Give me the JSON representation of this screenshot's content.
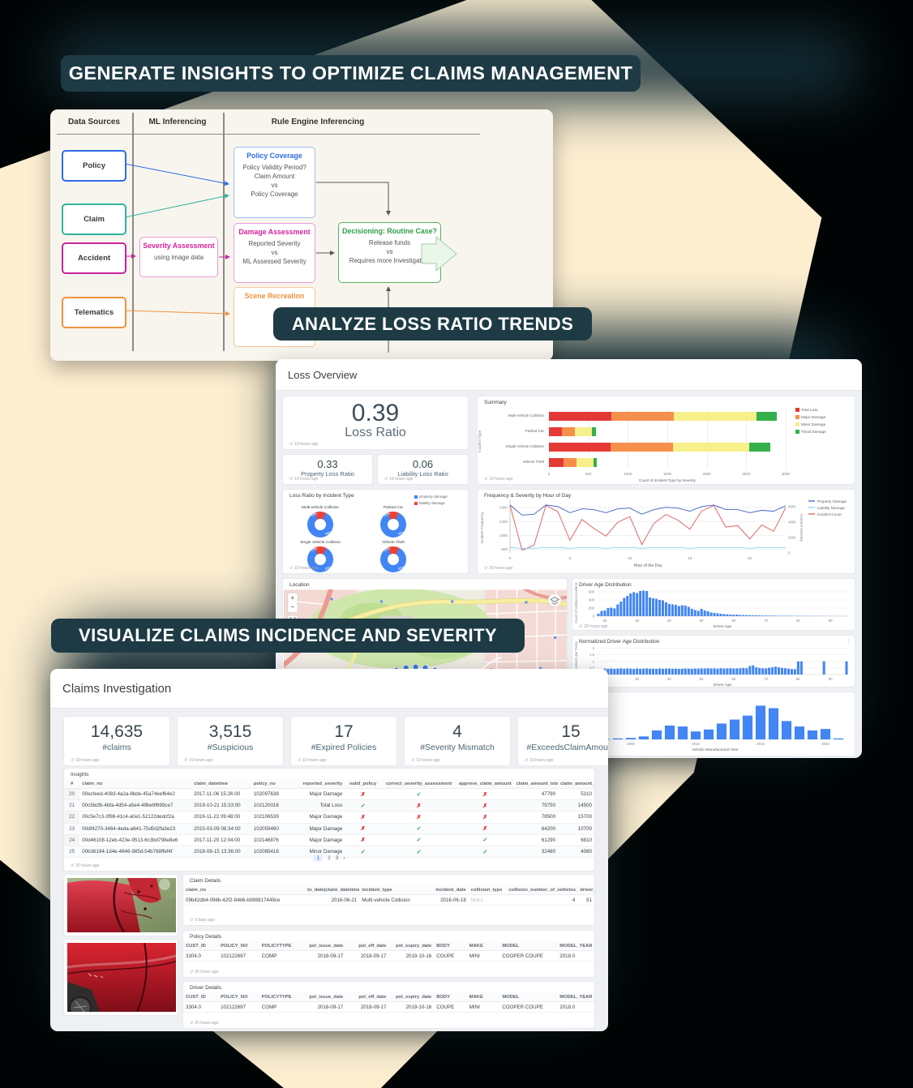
{
  "banners": {
    "b1": "GENERATE INSIGHTS TO OPTIMIZE CLAIMS MANAGEMENT",
    "b2": "ANALYZE LOSS RATIO TRENDS",
    "b3": "VISUALIZE CLAIMS INCIDENCE AND SEVERITY"
  },
  "colors": {
    "accent_cream": "#fdeed0",
    "banner_bg": "#1e3b45",
    "blue": "#2e6be6",
    "teal": "#2fb5a0",
    "magenta": "#d6219c",
    "orange": "#f0923e",
    "green": "#2f9e44",
    "chart_blue": "#4285f4",
    "chart_red": "#ea4335",
    "check_green": "#1e9e44",
    "cross_red": "#dd1c1c"
  },
  "flowchart": {
    "headers": [
      "Data Sources",
      "ML Inferencing",
      "Rule Engine Inferencing"
    ],
    "sources": [
      {
        "label": "Policy",
        "color": "#2e6be6"
      },
      {
        "label": "Claim",
        "color": "#2fb5a0"
      },
      {
        "label": "Accident",
        "color": "#c9259c"
      },
      {
        "label": "Telematics",
        "color": "#f0923e"
      }
    ],
    "ml_box": {
      "title": "Severity Assessment",
      "subtitle": "using image data",
      "color": "#d6219c",
      "border": "#eb9ad6"
    },
    "policy_box": {
      "title": "Policy Coverage",
      "lines": [
        "Policy Validity Period?",
        "Claim Amount",
        "vs",
        "Policy Coverage"
      ],
      "color": "#2e6be6",
      "border": "#9dbef2"
    },
    "damage_box": {
      "title": "Damage Assessment",
      "lines": [
        "Reported Severity",
        "vs",
        "ML Assessed Severity"
      ],
      "color": "#d6219c",
      "border": "#eb9ad6"
    },
    "scene_box": {
      "title": "Scene Recreation",
      "lines": [],
      "color": "#f0923e",
      "border": "#f6c795"
    },
    "decision_box": {
      "title": "Decisioning: Routine Case?",
      "lines": [
        "Release funds",
        "vs",
        "Requires more Investigation"
      ],
      "color": "#2f9e44",
      "border": "#57b35f"
    }
  },
  "loss": {
    "title": "Loss Overview",
    "kpi_main": {
      "value": "0.39",
      "label": "Loss Ratio",
      "ago": "19 hours ago"
    },
    "kpi_sub": [
      {
        "value": "0.33",
        "label": "Property Loss Ratio",
        "ago": "19 hours ago"
      },
      {
        "value": "0.06",
        "label": "Liability Loss Ratio",
        "ago": "19 hours ago"
      }
    ],
    "summary": {
      "title": "Summary",
      "ago": "19 hours ago"
    },
    "donuts": {
      "title": "Loss Ratio by Incident Type",
      "ago": "19 hours ago"
    },
    "freq": {
      "title": "Frequency & Severity by Hour of Day",
      "ago": "20 hours ago"
    },
    "map": {
      "title": "Location"
    },
    "age1": {
      "title": "Driver Age Distribution",
      "ago": "20 hours ago"
    },
    "age2": {
      "title": "Normalized Driver Age Distribution"
    },
    "age3": {
      "title": "Age"
    }
  },
  "claims": {
    "title": "Claims Investigation",
    "kpis": [
      {
        "value": "14,635",
        "label": "#claims",
        "ago": "19 hours ago"
      },
      {
        "value": "3,515",
        "label": "#Suspicious",
        "ago": "19 hours ago"
      },
      {
        "value": "17",
        "label": "#Expired Policies",
        "ago": "19 hours ago"
      },
      {
        "value": "4",
        "label": "#Severity Mismatch",
        "ago": "19 hours ago"
      },
      {
        "value": "15",
        "label": "#ExceedsClaimAmount",
        "ago": "19 hours ago"
      }
    ],
    "insights": {
      "title": "Insights",
      "ago": "20 hours ago",
      "columns": [
        "#",
        "claim_no",
        "claim_datetime",
        "policy_no",
        "reported_severity",
        "valid_policy",
        "correct_severity_assessment",
        "approve_claim_amount",
        "claim_amount_total",
        "claim_amount_injury"
      ],
      "rows": [
        [
          "20",
          "00ecfeed-4083-4a2a-8bde-45a74eef64e2",
          "2017-11-06 15:26:00",
          "102097638",
          "Major Damage",
          "x",
          "v",
          "x",
          "47790",
          "5310"
        ],
        [
          "21",
          "00c5bcfb-4bfa-4d54-a5e4-49be9f699ce7",
          "2019-10-21 15:33:00",
          "102120018",
          "Total Loss",
          "v",
          "x",
          "x",
          "79750",
          "14500"
        ],
        [
          "22",
          "00c5e7c3-3f98-41c4-a0e1-52122dedcf2a",
          "2016-11-22 09:48:00",
          "102106539",
          "Major Damage",
          "x",
          "x",
          "x",
          "78500",
          "15700"
        ],
        [
          "23",
          "00df4270-3464-4eda-a641-75d5d2fa3e23",
          "2015-03-09 08:34:00",
          "102059460",
          "Major Damage",
          "x",
          "v",
          "x",
          "64200",
          "10700"
        ],
        [
          "24",
          "00d46108-12eb-423e-9513-6c3bd798e8e6",
          "2017-11-20 12:04:00",
          "102146876",
          "Major Damage",
          "x",
          "v",
          "v",
          "61290",
          "6810"
        ],
        [
          "25",
          "00b36194-1d4e-4646-985d-54b768ffef4f",
          "2018-08-15 13:36:00",
          "102085418",
          "Minor Damage",
          "v",
          "v",
          "v",
          "32480",
          "4060"
        ]
      ],
      "pagination": [
        "1",
        "2",
        "3",
        "›"
      ],
      "current_page": "1"
    },
    "claim_details": {
      "title": "Claim Details",
      "ago": "5 days ago",
      "columns": [
        "claim_no",
        "to_date(claim_datetime)",
        "incident_type",
        "incident_date",
        "collision_type",
        "collision_number_of_vehicles_involved",
        "driver_age"
      ],
      "rows": [
        [
          "09b42db4-096b-42f2-84b6-b089817449ce",
          "2016-06-21",
          "Multi-vehicle Collision",
          "2016-06-18",
          "NULL",
          "4",
          "51"
        ]
      ]
    },
    "policy_details": {
      "title": "Policy Details",
      "ago": "20 hours ago",
      "columns": [
        "CUST_ID",
        "POLICY_NO",
        "POLICYTYPE",
        "pol_issue_date",
        "pol_eff_date",
        "pol_expiry_date",
        "BODY",
        "MAKE",
        "MODEL",
        "MODEL_YEAR"
      ],
      "rows": [
        [
          "3304.0",
          "102122697",
          "COMP",
          "2018-09-17",
          "2018-09-17",
          "2019-10-16",
          "COUPE",
          "MINI",
          "COOPER COUPE",
          "2018.0"
        ]
      ]
    },
    "driver_details": {
      "title": "Driver Details",
      "ago": "20 hours ago",
      "columns": [
        "CUST_ID",
        "POLICY_NO",
        "POLICYTYPE",
        "pol_issue_date",
        "pol_eff_date",
        "pol_expiry_date",
        "BODY",
        "MAKE",
        "MODEL",
        "MODEL_YEAR"
      ],
      "rows": [
        [
          "3304.0",
          "102122697",
          "COMP",
          "2018-09-17",
          "2018-09-17",
          "2019-10-16",
          "COUPE",
          "MINI",
          "COOPER COUPE",
          "2018.0"
        ]
      ]
    }
  },
  "chart_data": [
    {
      "id": "summary",
      "type": "bar",
      "orientation": "horizontal",
      "stacked": true,
      "title": "Summary",
      "categories": [
        "Multi-vehicle Collision",
        "Parked Car",
        "Single Vehicle Collision",
        "Vehicle Theft"
      ],
      "series": [
        {
          "name": "Total Loss",
          "color": "#e53935",
          "values": [
            790,
            160,
            780,
            180
          ]
        },
        {
          "name": "Major Damage",
          "color": "#f78f4c",
          "values": [
            790,
            170,
            790,
            170
          ]
        },
        {
          "name": "Minor Damage",
          "color": "#f7ef8a",
          "values": [
            1050,
            215,
            970,
            210
          ]
        },
        {
          "name": "Trivial Damage",
          "color": "#34b04a",
          "values": [
            260,
            55,
            270,
            50
          ]
        }
      ],
      "xlabel": "Count of Incident Type by Severity",
      "ylabel": "Incident Type",
      "xlim": [
        0,
        3000
      ],
      "xticks": [
        0,
        500,
        1000,
        1500,
        2000,
        2500,
        3000
      ],
      "legend_position": "right"
    },
    {
      "id": "loss_ratio_donuts",
      "type": "pie",
      "title": "Loss Ratio by Incident Type",
      "legend": [
        {
          "label": "property damage",
          "color": "#4285f4"
        },
        {
          "label": "liability damage",
          "color": "#ea4335"
        }
      ],
      "donuts": [
        {
          "title": "Multi-vehicle Collision",
          "property_pct": 86,
          "liability_pct": 14
        },
        {
          "title": "Parked Car",
          "property_pct": 86,
          "liability_pct": 14
        },
        {
          "title": "Single Vehicle Collision",
          "property_pct": 85,
          "liability_pct": 15
        },
        {
          "title": "Vehicle Theft",
          "property_pct": 85,
          "liability_pct": 15
        }
      ]
    },
    {
      "id": "freq",
      "type": "line",
      "title": "Frequency & Severity by Hour of Day",
      "x": [
        0,
        1,
        2,
        3,
        4,
        5,
        6,
        7,
        8,
        9,
        10,
        11,
        12,
        13,
        14,
        15,
        16,
        17,
        18,
        19,
        20,
        21,
        22,
        23
      ],
      "series": [
        {
          "name": "Incident Count",
          "axis": "left",
          "color": "#e25757",
          "values": [
            1430,
            790,
            860,
            1430,
            1340,
            930,
            1230,
            1100,
            990,
            1190,
            1270,
            870,
            1170,
            1300,
            1220,
            1090,
            1350,
            1430,
            1120,
            1140,
            950,
            1150,
            1060,
            1400
          ]
        },
        {
          "name": "Liability Damage",
          "axis": "right",
          "color": "#7fd4ec",
          "values": [
            7,
            6,
            6,
            7,
            7,
            6,
            7,
            7,
            6,
            7,
            7,
            6,
            7,
            7,
            7,
            6,
            7,
            7,
            7,
            7,
            6,
            7,
            7,
            7
          ]
        },
        {
          "name": "Property Damage",
          "axis": "right",
          "color": "#3d5fc4",
          "values": [
            62,
            49,
            50,
            62,
            60,
            52,
            57,
            56,
            52,
            57,
            58,
            50,
            56,
            59,
            58,
            54,
            60,
            62,
            56,
            56,
            52,
            55,
            54,
            61
          ]
        }
      ],
      "ylabel_left": "Incident Frequency",
      "ylabel_right": "Incident Severity",
      "ylim_left": [
        750,
        1470
      ],
      "yticks_left": [
        800,
        1000,
        1200,
        1400
      ],
      "ylim_right": [
        0,
        65
      ],
      "yticks_right": [
        "0",
        "20M",
        "40M",
        "60M"
      ],
      "xlabel": "Hour of the Day",
      "xticks": [
        0,
        5,
        10,
        15,
        20
      ]
    },
    {
      "id": "driver_age",
      "type": "bar",
      "title": "Driver Age Distribution",
      "x_start": 18,
      "values": [
        60,
        130,
        140,
        200,
        210,
        190,
        290,
        360,
        450,
        500,
        560,
        590,
        570,
        620,
        630,
        620,
        460,
        440,
        430,
        400,
        390,
        340,
        300,
        290,
        280,
        250,
        270,
        260,
        230,
        180,
        150,
        130,
        180,
        140,
        120,
        90,
        80,
        70,
        60,
        50,
        45,
        40,
        35,
        40,
        30,
        28,
        26,
        24,
        22,
        20,
        18,
        16,
        15,
        14,
        13,
        12,
        11,
        10,
        10,
        9,
        9,
        8,
        8,
        7,
        7,
        6,
        6,
        5,
        5,
        5,
        4,
        4,
        4,
        3,
        3,
        3,
        2,
        2
      ],
      "ylim": [
        0,
        660
      ],
      "yticks": [
        0,
        200,
        400,
        600
      ],
      "xticks": [
        20,
        30,
        40,
        50,
        60,
        70,
        80,
        90
      ],
      "xlabel": "Driver Age",
      "ylabel": "Count of Collision Incidents",
      "color": "#4285f4"
    },
    {
      "id": "normalized_driver_age",
      "type": "bar",
      "title": "Normalized Driver Age Distribution",
      "x_start": 18,
      "values": [
        0.38,
        0.42,
        0.45,
        0.44,
        0.46,
        0.43,
        0.45,
        0.47,
        0.44,
        0.46,
        0.45,
        0.43,
        0.46,
        0.44,
        0.45,
        0.46,
        0.44,
        0.45,
        0.43,
        0.46,
        0.44,
        0.45,
        0.46,
        0.44,
        0.45,
        0.43,
        0.44,
        0.46,
        0.45,
        0.44,
        0.46,
        0.45,
        0.47,
        0.46,
        0.48,
        0.46,
        0.47,
        0.45,
        0.48,
        0.46,
        0.47,
        0.48,
        0.46,
        0.47,
        0.48,
        0.5,
        0.48,
        0.65,
        0.7,
        0.55,
        0.5,
        0.48,
        0.47,
        0.52,
        0.55,
        0.6,
        0.55,
        0.5,
        0.48,
        0.45,
        0.42,
        0.4,
        1.0,
        1.0,
        0,
        0,
        0,
        0,
        0,
        0,
        1.0,
        0,
        0,
        0,
        0,
        0,
        0,
        1.0
      ],
      "ylim": [
        0,
        2.1
      ],
      "yticks": [
        0.5,
        1,
        1.5,
        2
      ],
      "xticks": [
        20,
        30,
        40,
        50,
        60,
        70,
        80,
        90
      ],
      "xlabel": "Driver Age",
      "ylabel": "Mean Incidents per Policy",
      "color": "#4285f4"
    },
    {
      "id": "vehicle_year",
      "type": "bar",
      "title": "Age",
      "x_start": 2002,
      "values": [
        1,
        1,
        2,
        3,
        6,
        18,
        28,
        26,
        16,
        20,
        32,
        40,
        48,
        68,
        63,
        37,
        26,
        18,
        21,
        2
      ],
      "ylim": [
        0,
        72
      ],
      "yticks": [],
      "xticks": [
        2005,
        2010,
        2015,
        2020
      ],
      "xlabel": "Vehicle Manufactured Year",
      "ylabel": "",
      "color": "#4285f4"
    }
  ]
}
